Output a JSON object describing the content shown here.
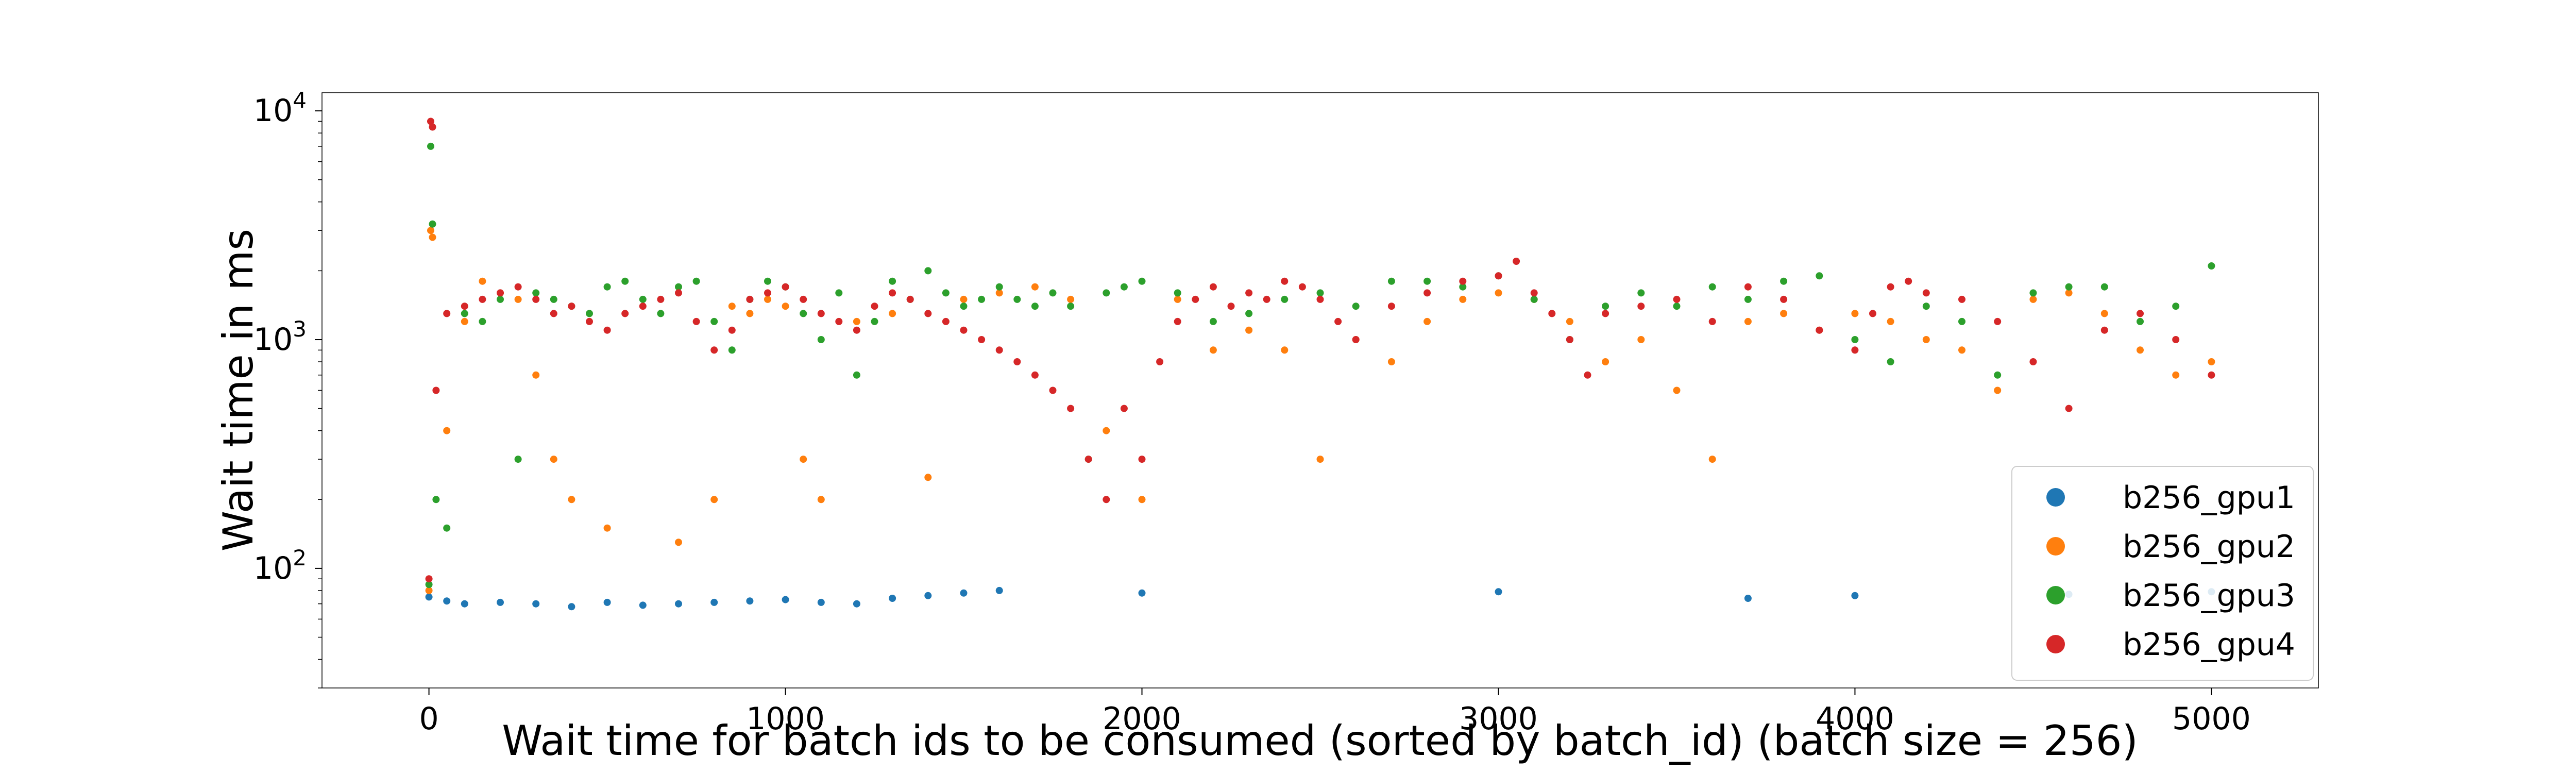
{
  "chart_data": {
    "type": "scatter",
    "title": "",
    "xlabel": "Wait time for batch ids to be consumed (sorted by batch_id) (batch size = 256)",
    "ylabel": "Wait time in ms",
    "xlim": [
      -300,
      5300
    ],
    "ylim": [
      30,
      12000
    ],
    "yscale": "log",
    "x_ticks": [
      0,
      1000,
      2000,
      3000,
      4000,
      5000
    ],
    "x_tick_labels": [
      "0",
      "1000",
      "2000",
      "3000",
      "4000",
      "5000"
    ],
    "y_ticks": [
      100,
      1000,
      10000
    ],
    "y_tick_labels": [
      {
        "base": "10",
        "exp": "2"
      },
      {
        "base": "10",
        "exp": "3"
      },
      {
        "base": "10",
        "exp": "4"
      }
    ],
    "grid": false,
    "legend_position": "lower right",
    "series": [
      {
        "name": "b256_gpu1",
        "color": "#1f77b4",
        "x": [
          0,
          50,
          100,
          200,
          300,
          400,
          500,
          600,
          700,
          800,
          900,
          1000,
          1100,
          1200,
          1300,
          1400,
          1500,
          1600,
          2000,
          3000,
          3700,
          4000,
          4600,
          5000
        ],
        "y": [
          75,
          72,
          70,
          71,
          70,
          68,
          71,
          69,
          70,
          71,
          72,
          73,
          71,
          70,
          74,
          76,
          78,
          80,
          78,
          79,
          74,
          76,
          77,
          79
        ]
      },
      {
        "name": "b256_gpu2",
        "color": "#ff7f0e",
        "x": [
          0,
          5,
          10,
          50,
          100,
          150,
          200,
          250,
          300,
          350,
          400,
          500,
          700,
          800,
          850,
          900,
          950,
          1000,
          1050,
          1100,
          1200,
          1300,
          1400,
          1500,
          1600,
          1700,
          1800,
          1900,
          2000,
          2100,
          2200,
          2300,
          2400,
          2500,
          2600,
          2700,
          2800,
          2900,
          3000,
          3100,
          3200,
          3300,
          3400,
          3500,
          3600,
          3700,
          3800,
          3900,
          4000,
          4100,
          4200,
          4300,
          4400,
          4500,
          4600,
          4700,
          4800,
          4900,
          5000
        ],
        "y": [
          80,
          3000,
          2800,
          400,
          1200,
          1800,
          1600,
          1500,
          700,
          300,
          200,
          150,
          130,
          200,
          1400,
          1300,
          1500,
          1400,
          300,
          200,
          1200,
          1300,
          250,
          1500,
          1600,
          1700,
          1500,
          400,
          200,
          1500,
          900,
          1100,
          900,
          300,
          1000,
          800,
          1200,
          1500,
          1600,
          1500,
          1200,
          800,
          1000,
          600,
          300,
          1200,
          1300,
          1100,
          1300,
          1200,
          1000,
          900,
          600,
          1500,
          1600,
          1300,
          900,
          700,
          800
        ]
      },
      {
        "name": "b256_gpu3",
        "color": "#2ca02c",
        "x": [
          0,
          5,
          10,
          20,
          50,
          100,
          150,
          200,
          250,
          300,
          350,
          400,
          450,
          500,
          550,
          600,
          650,
          700,
          750,
          800,
          850,
          900,
          950,
          1000,
          1050,
          1100,
          1150,
          1200,
          1250,
          1300,
          1350,
          1400,
          1450,
          1500,
          1550,
          1600,
          1650,
          1700,
          1750,
          1800,
          1850,
          1900,
          1950,
          2000,
          2100,
          2200,
          2300,
          2400,
          2500,
          2600,
          2700,
          2800,
          2900,
          3000,
          3100,
          3200,
          3300,
          3400,
          3500,
          3600,
          3700,
          3800,
          3900,
          4000,
          4100,
          4200,
          4300,
          4400,
          4500,
          4600,
          4700,
          4800,
          4900,
          5000
        ],
        "y": [
          85,
          7000,
          3200,
          200,
          150,
          1300,
          1200,
          1500,
          300,
          1600,
          1500,
          1400,
          1300,
          1700,
          1800,
          1500,
          1300,
          1700,
          1800,
          1200,
          900,
          1500,
          1800,
          1700,
          1300,
          1000,
          1600,
          700,
          1200,
          1800,
          1500,
          2000,
          1600,
          1400,
          1500,
          1700,
          1500,
          1400,
          1600,
          1400,
          300,
          1600,
          1700,
          1800,
          1600,
          1200,
          1300,
          1500,
          1600,
          1400,
          1800,
          1800,
          1700,
          1900,
          1500,
          1000,
          1400,
          1600,
          1400,
          1700,
          1500,
          1800,
          1900,
          1000,
          800,
          1400,
          1200,
          700,
          1600,
          1700,
          1700,
          1200,
          1400,
          2100
        ]
      },
      {
        "name": "b256_gpu4",
        "color": "#d62728",
        "x": [
          0,
          5,
          10,
          20,
          50,
          100,
          150,
          200,
          250,
          300,
          350,
          400,
          450,
          500,
          550,
          600,
          650,
          700,
          750,
          800,
          850,
          900,
          950,
          1000,
          1050,
          1100,
          1150,
          1200,
          1250,
          1300,
          1350,
          1400,
          1450,
          1500,
          1550,
          1600,
          1650,
          1700,
          1750,
          1800,
          1850,
          1900,
          1950,
          2000,
          2050,
          2100,
          2150,
          2200,
          2250,
          2300,
          2350,
          2400,
          2450,
          2500,
          2550,
          2600,
          2700,
          2800,
          2900,
          3000,
          3050,
          3100,
          3150,
          3200,
          3250,
          3300,
          3400,
          3500,
          3600,
          3700,
          3800,
          3900,
          4000,
          4050,
          4100,
          4150,
          4200,
          4300,
          4400,
          4500,
          4600,
          4700,
          4800,
          4900,
          5000
        ],
        "y": [
          90,
          9000,
          8500,
          600,
          1300,
          1400,
          1500,
          1600,
          1700,
          1500,
          1300,
          1400,
          1200,
          1100,
          1300,
          1400,
          1500,
          1600,
          1200,
          900,
          1100,
          1500,
          1600,
          1700,
          1500,
          1300,
          1200,
          1100,
          1400,
          1600,
          1500,
          1300,
          1200,
          1100,
          1000,
          900,
          800,
          700,
          600,
          500,
          300,
          200,
          500,
          300,
          800,
          1200,
          1500,
          1700,
          1400,
          1600,
          1500,
          1800,
          1700,
          1500,
          1200,
          1000,
          1400,
          1600,
          1800,
          1900,
          2200,
          1600,
          1300,
          1000,
          700,
          1300,
          1400,
          1500,
          1200,
          1700,
          1500,
          1100,
          900,
          1300,
          1700,
          1800,
          1600,
          1500,
          1200,
          800,
          500,
          1100,
          1300,
          1000,
          700
        ]
      }
    ]
  }
}
